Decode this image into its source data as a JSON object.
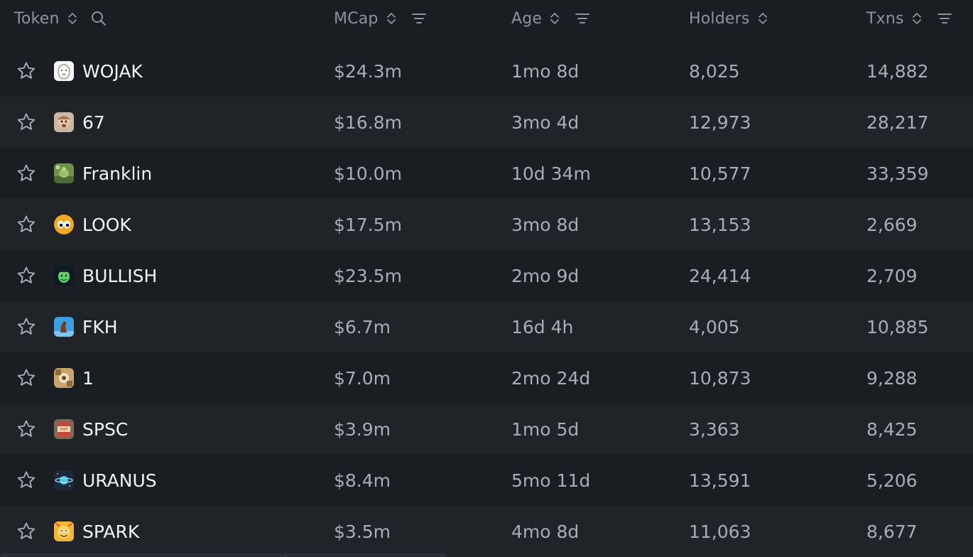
{
  "columns": {
    "token": "Token",
    "mcap": "MCap",
    "age": "Age",
    "holders": "Holders",
    "txns": "Txns"
  },
  "icons": {
    "sort": "sort-updown-icon",
    "filter": "filter-lines-icon",
    "search": "search-icon",
    "star": "star-outline-icon"
  },
  "colors": {
    "background": "#1a1d21",
    "row_alt": "#202428",
    "header_text": "#8f949c",
    "value_text": "#a9adb4",
    "name_text": "#f2f3f5"
  },
  "rows": [
    {
      "name": "WOJAK",
      "mcap": "$24.3m",
      "age": "1mo 8d",
      "holders": "8,025",
      "txns": "14,882",
      "avatar": "wojak"
    },
    {
      "name": "67",
      "mcap": "$16.8m",
      "age": "3mo 4d",
      "holders": "12,973",
      "txns": "28,217",
      "avatar": "kid"
    },
    {
      "name": "Franklin",
      "mcap": "$10.0m",
      "age": "10d 34m",
      "holders": "10,577",
      "txns": "33,359",
      "avatar": "turtle"
    },
    {
      "name": "LOOK",
      "mcap": "$17.5m",
      "age": "3mo 8d",
      "holders": "13,153",
      "txns": "2,669",
      "avatar": "eyes"
    },
    {
      "name": "BULLISH",
      "mcap": "$23.5m",
      "age": "2mo 9d",
      "holders": "24,414",
      "txns": "2,709",
      "avatar": "green-face"
    },
    {
      "name": "FKH",
      "mcap": "$6.7m",
      "age": "16d 4h",
      "holders": "4,005",
      "txns": "10,885",
      "avatar": "horse"
    },
    {
      "name": "1",
      "mcap": "$7.0m",
      "age": "2mo 24d",
      "holders": "10,873",
      "txns": "9,288",
      "avatar": "collage"
    },
    {
      "name": "SPSC",
      "mcap": "$3.9m",
      "age": "1mo 5d",
      "holders": "3,363",
      "txns": "8,425",
      "avatar": "can"
    },
    {
      "name": "URANUS",
      "mcap": "$8.4m",
      "age": "5mo 11d",
      "holders": "13,591",
      "txns": "5,206",
      "avatar": "planet"
    },
    {
      "name": "SPARK",
      "mcap": "$3.5m",
      "age": "4mo 8d",
      "holders": "11,063",
      "txns": "8,677",
      "avatar": "spark"
    }
  ]
}
